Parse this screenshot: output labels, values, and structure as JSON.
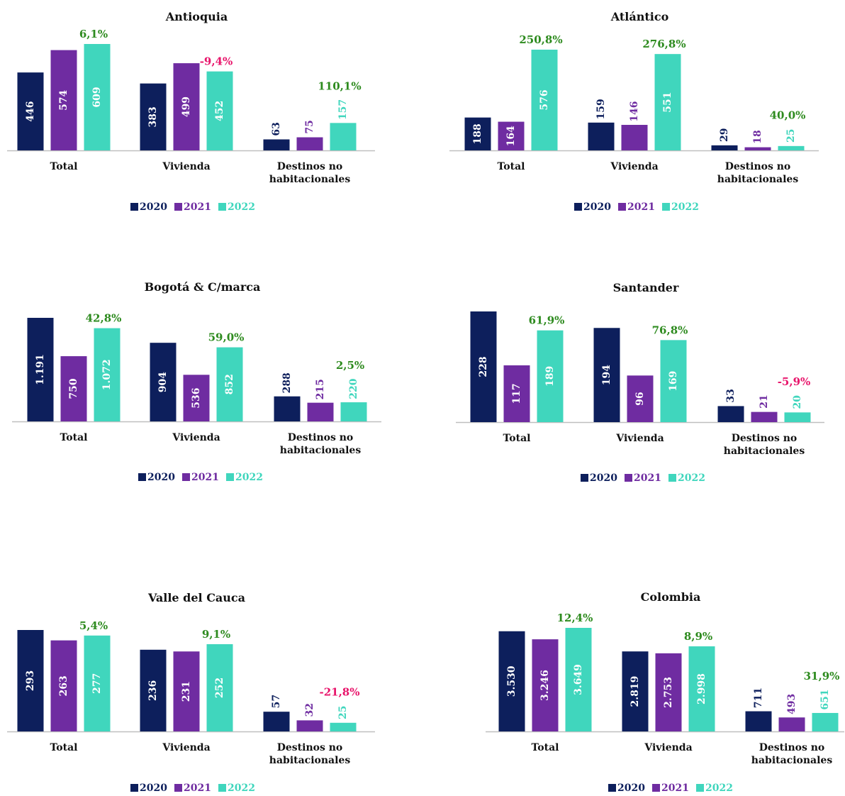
{
  "colors": {
    "2020": "#0d1f5c",
    "2021": "#6f2ca1",
    "2022": "#40d6bd",
    "positive": "#2e8b1f",
    "negative": "#e8156b",
    "axis": "#bfbfbf",
    "text": "#111111"
  },
  "legend": [
    "2020",
    "2021",
    "2022"
  ],
  "chart_data": [
    {
      "type": "bar",
      "title": "Antioquia",
      "categories": [
        "Total",
        "Vivienda",
        "Destinos no habitacionales"
      ],
      "series": [
        {
          "name": "2020",
          "values": [
            446,
            383,
            63
          ]
        },
        {
          "name": "2021",
          "values": [
            574,
            499,
            75
          ]
        },
        {
          "name": "2022",
          "values": [
            609,
            452,
            157
          ]
        }
      ],
      "labels": [
        [
          "446",
          "383",
          "63"
        ],
        [
          "574",
          "499",
          "75"
        ],
        [
          "609",
          "452",
          "157"
        ]
      ],
      "changes": [
        "6,1%",
        "-9,4%",
        "110,1%"
      ]
    },
    {
      "type": "bar",
      "title": "Atlántico",
      "categories": [
        "Total",
        "Vivienda",
        "Destinos no habitacionales"
      ],
      "series": [
        {
          "name": "2020",
          "values": [
            188,
            159,
            29
          ]
        },
        {
          "name": "2021",
          "values": [
            164,
            146,
            18
          ]
        },
        {
          "name": "2022",
          "values": [
            576,
            551,
            25
          ]
        }
      ],
      "labels": [
        [
          "188",
          "159",
          "29"
        ],
        [
          "164",
          "146",
          "18"
        ],
        [
          "576",
          "551",
          "25"
        ]
      ],
      "changes": [
        "250,8%",
        "276,8%",
        "40,0%"
      ]
    },
    {
      "type": "bar",
      "title": "Bogotá & C/marca",
      "categories": [
        "Total",
        "Vivienda",
        "Destinos no habitacionales"
      ],
      "series": [
        {
          "name": "2020",
          "values": [
            1191,
            904,
            288
          ]
        },
        {
          "name": "2021",
          "values": [
            750,
            536,
            215
          ]
        },
        {
          "name": "2022",
          "values": [
            1072,
            852,
            220
          ]
        }
      ],
      "labels": [
        [
          "1.191",
          "904",
          "288"
        ],
        [
          "750",
          "536",
          "215"
        ],
        [
          "1.072",
          "852",
          "220"
        ]
      ],
      "changes": [
        "42,8%",
        "59,0%",
        "2,5%"
      ]
    },
    {
      "type": "bar",
      "title": "Santander",
      "categories": [
        "Total",
        "Vivienda",
        "Destinos no habitacionales"
      ],
      "series": [
        {
          "name": "2020",
          "values": [
            228,
            194,
            33
          ]
        },
        {
          "name": "2021",
          "values": [
            117,
            96,
            21
          ]
        },
        {
          "name": "2022",
          "values": [
            189,
            169,
            20
          ]
        }
      ],
      "labels": [
        [
          "228",
          "194",
          "33"
        ],
        [
          "117",
          "96",
          "21"
        ],
        [
          "189",
          "169",
          "20"
        ]
      ],
      "changes": [
        "61,9%",
        "76,8%",
        "-5,9%"
      ]
    },
    {
      "type": "bar",
      "title": "Valle del Cauca",
      "categories": [
        "Total",
        "Vivienda",
        "Destinos no habitacionales"
      ],
      "series": [
        {
          "name": "2020",
          "values": [
            293,
            236,
            57
          ]
        },
        {
          "name": "2021",
          "values": [
            263,
            231,
            32
          ]
        },
        {
          "name": "2022",
          "values": [
            277,
            252,
            25
          ]
        }
      ],
      "labels": [
        [
          "293",
          "236",
          "57"
        ],
        [
          "263",
          "231",
          "32"
        ],
        [
          "277",
          "252",
          "25"
        ]
      ],
      "changes": [
        "5,4%",
        "9,1%",
        "-21,8%"
      ]
    },
    {
      "type": "bar",
      "title": "Colombia",
      "categories": [
        "Total",
        "Vivienda",
        "Destinos no habitacionales"
      ],
      "series": [
        {
          "name": "2020",
          "values": [
            3530,
            2819,
            711
          ]
        },
        {
          "name": "2021",
          "values": [
            3246,
            2753,
            493
          ]
        },
        {
          "name": "2022",
          "values": [
            3649,
            2998,
            651
          ]
        }
      ],
      "labels": [
        [
          "3.530",
          "2.819",
          "711"
        ],
        [
          "3.246",
          "2.753",
          "493"
        ],
        [
          "3.649",
          "2.998",
          "651"
        ]
      ],
      "changes": [
        "12,4%",
        "8,9%",
        "31,9%"
      ]
    }
  ]
}
